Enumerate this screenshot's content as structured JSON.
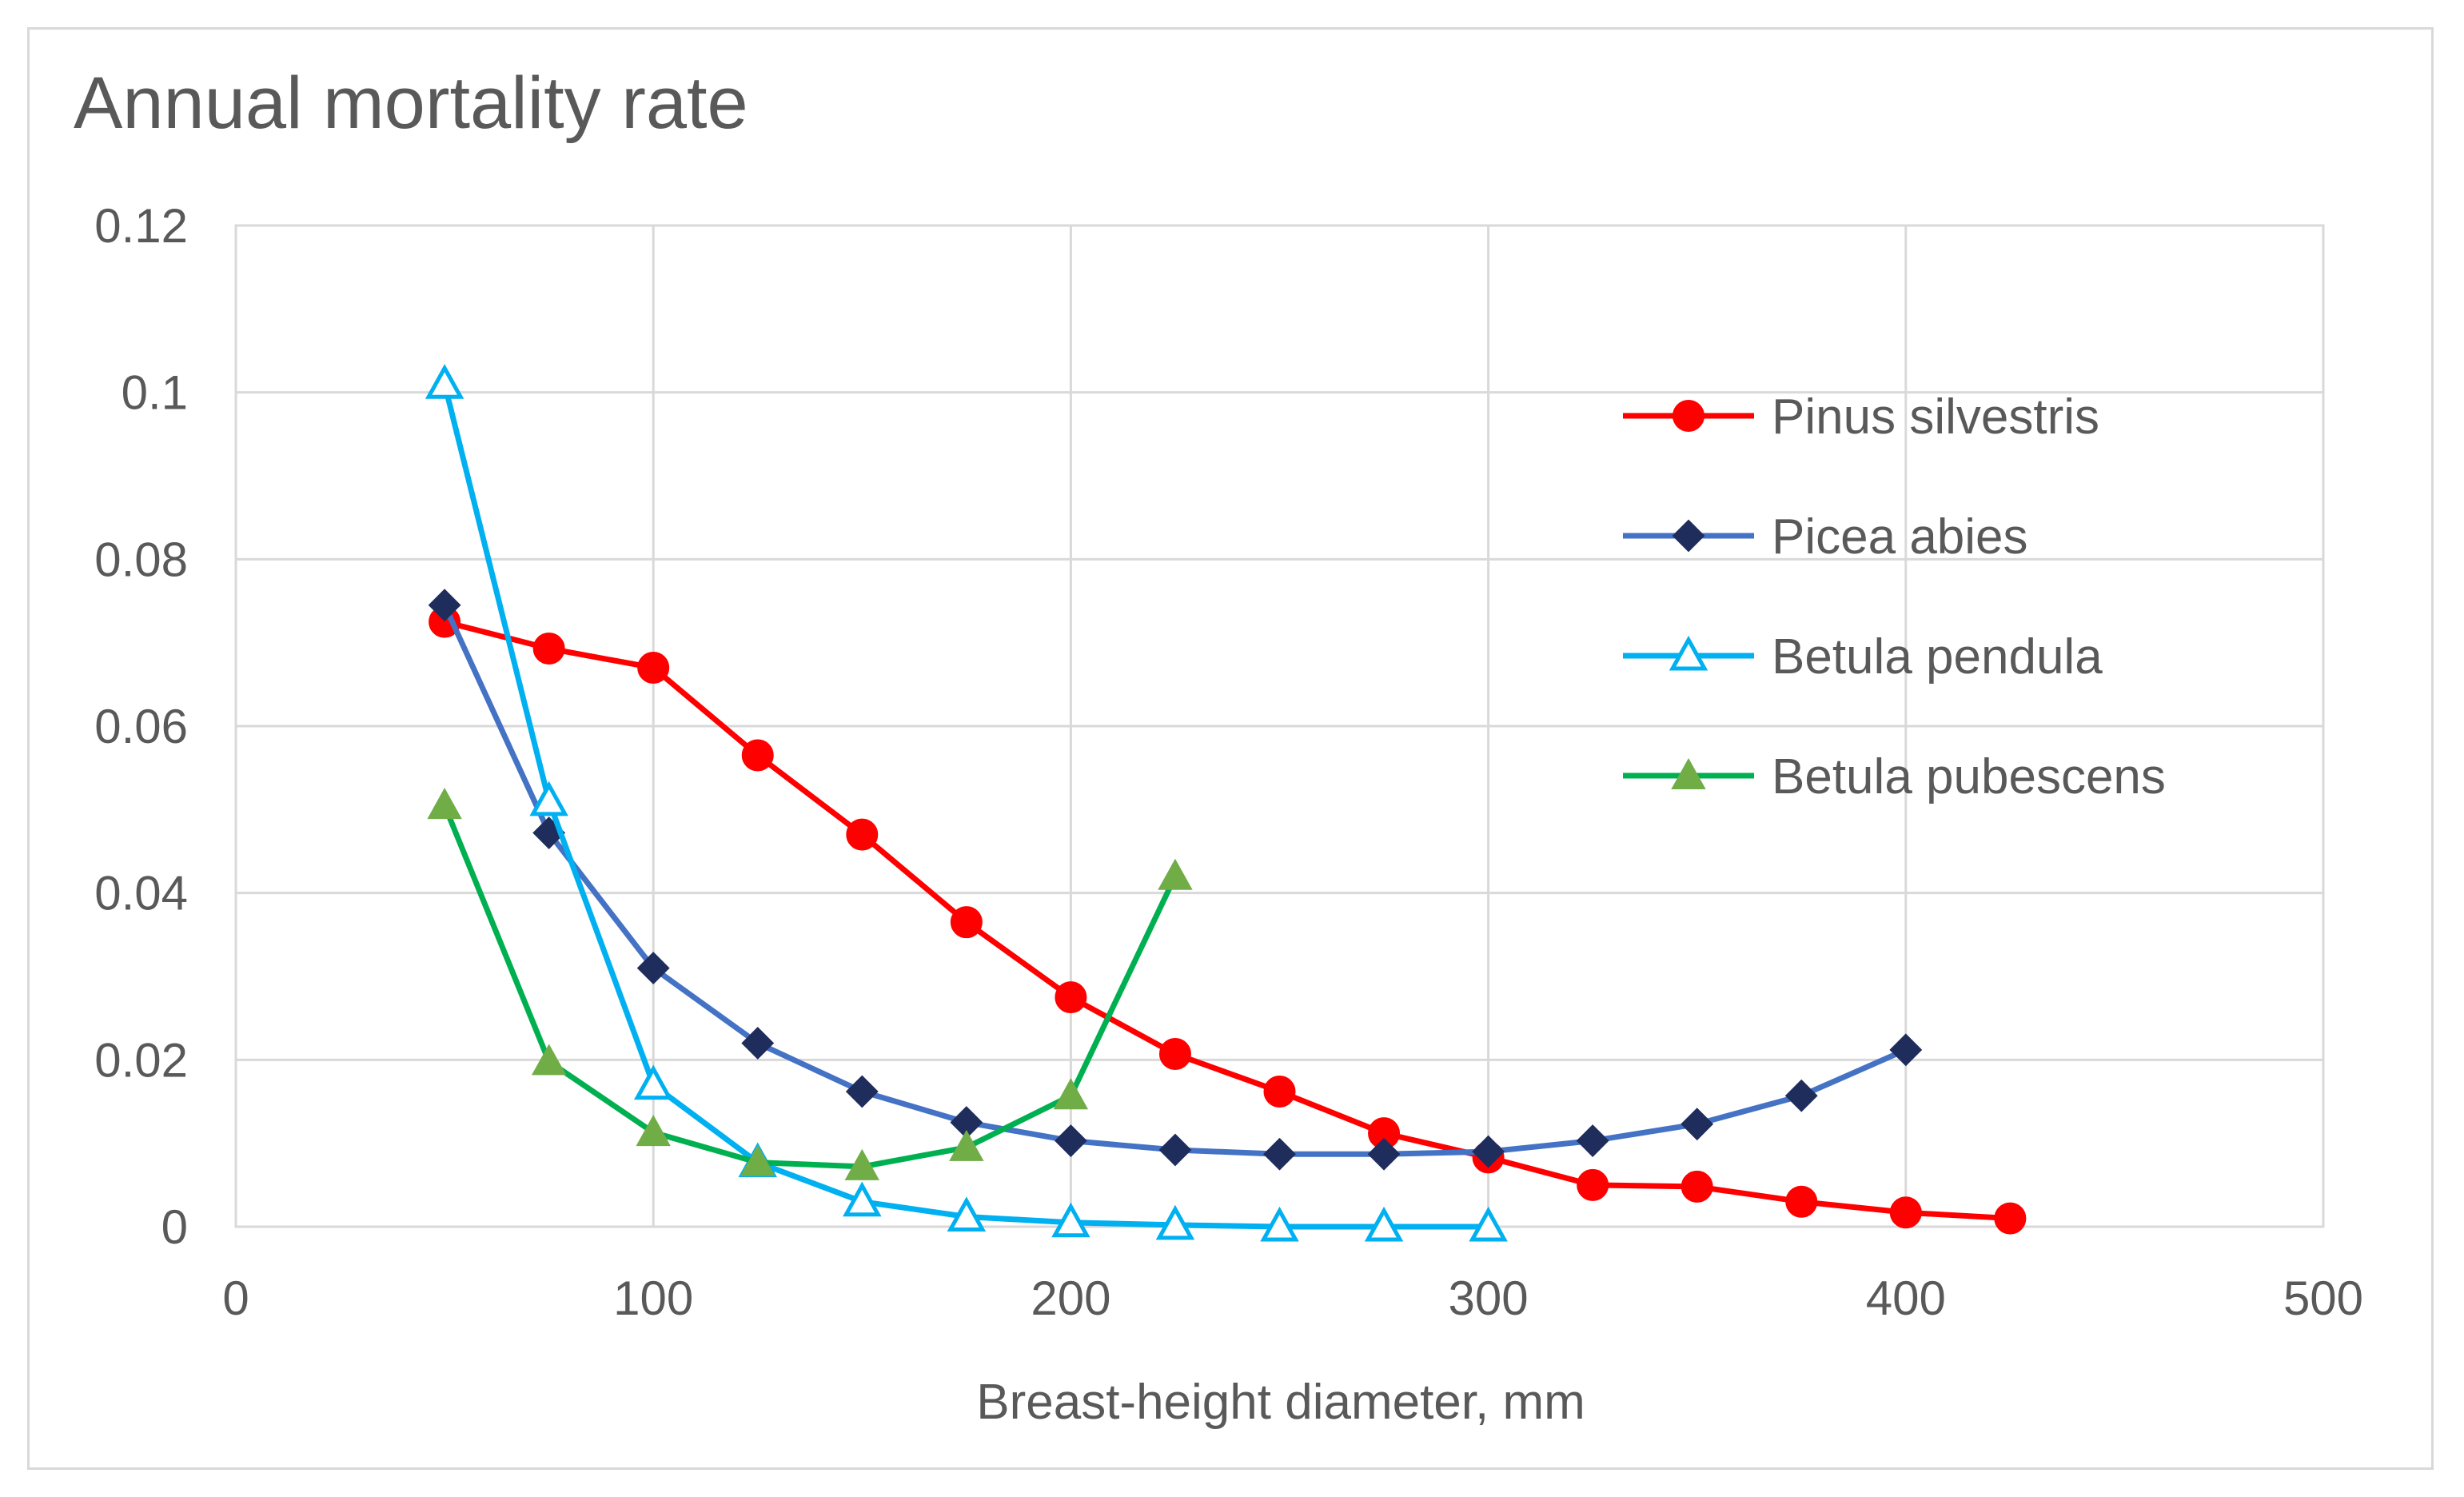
{
  "chart_data": {
    "type": "line",
    "title": "Annual mortality rate",
    "xlabel": "Breast-height diameter, mm",
    "ylabel": "",
    "xlim": [
      0,
      500
    ],
    "ylim": [
      0,
      0.12
    ],
    "x_ticks": [
      0,
      100,
      200,
      300,
      400,
      500
    ],
    "x_tick_labels": [
      "0",
      "100",
      "200",
      "300",
      "400",
      "500"
    ],
    "y_ticks": [
      0,
      0.02,
      0.04,
      0.06,
      0.08,
      0.1,
      0.12
    ],
    "y_tick_labels": [
      "0",
      "0.02",
      "0.04",
      "0.06",
      "0.08",
      "0.1",
      "0.12"
    ],
    "grid": true,
    "legend_position": "right",
    "series": [
      {
        "name": "Pinus silvestris",
        "color": "#ff0000",
        "marker": "circle",
        "x": [
          50,
          75,
          100,
          125,
          150,
          175,
          200,
          225,
          250,
          275,
          300,
          325,
          350,
          375,
          400,
          425
        ],
        "values": [
          0.0725,
          0.0693,
          0.067,
          0.0565,
          0.047,
          0.0365,
          0.0275,
          0.0207,
          0.0162,
          0.0112,
          0.0083,
          0.005,
          0.0048,
          0.003,
          0.0017,
          0.001
        ]
      },
      {
        "name": "Picea abies",
        "color": "#4472c4",
        "marker_color": "#1f2d5c",
        "marker": "diamond",
        "x": [
          50,
          75,
          100,
          125,
          150,
          175,
          200,
          225,
          250,
          275,
          300,
          325,
          350,
          375,
          400
        ],
        "values": [
          0.0745,
          0.0472,
          0.031,
          0.022,
          0.0162,
          0.0125,
          0.0103,
          0.0092,
          0.0087,
          0.0087,
          0.009,
          0.0103,
          0.0123,
          0.0157,
          0.0212
        ]
      },
      {
        "name": "Betula pendula",
        "color": "#00b0f0",
        "marker": "triangle-open",
        "x": [
          50,
          75,
          100,
          125,
          150,
          175,
          200,
          225,
          250,
          275,
          300
        ],
        "values": [
          0.101,
          0.051,
          0.017,
          0.0077,
          0.003,
          0.0012,
          0.0005,
          0.0002,
          0.0,
          0.0,
          0.0
        ]
      },
      {
        "name": "Betula pubescens",
        "color": "#00b050",
        "marker_color": "#70ad47",
        "marker": "triangle",
        "x": [
          50,
          75,
          100,
          125,
          150,
          175,
          200,
          225
        ],
        "values": [
          0.0505,
          0.0198,
          0.0113,
          0.0077,
          0.0072,
          0.0095,
          0.0157,
          0.042
        ]
      }
    ]
  }
}
